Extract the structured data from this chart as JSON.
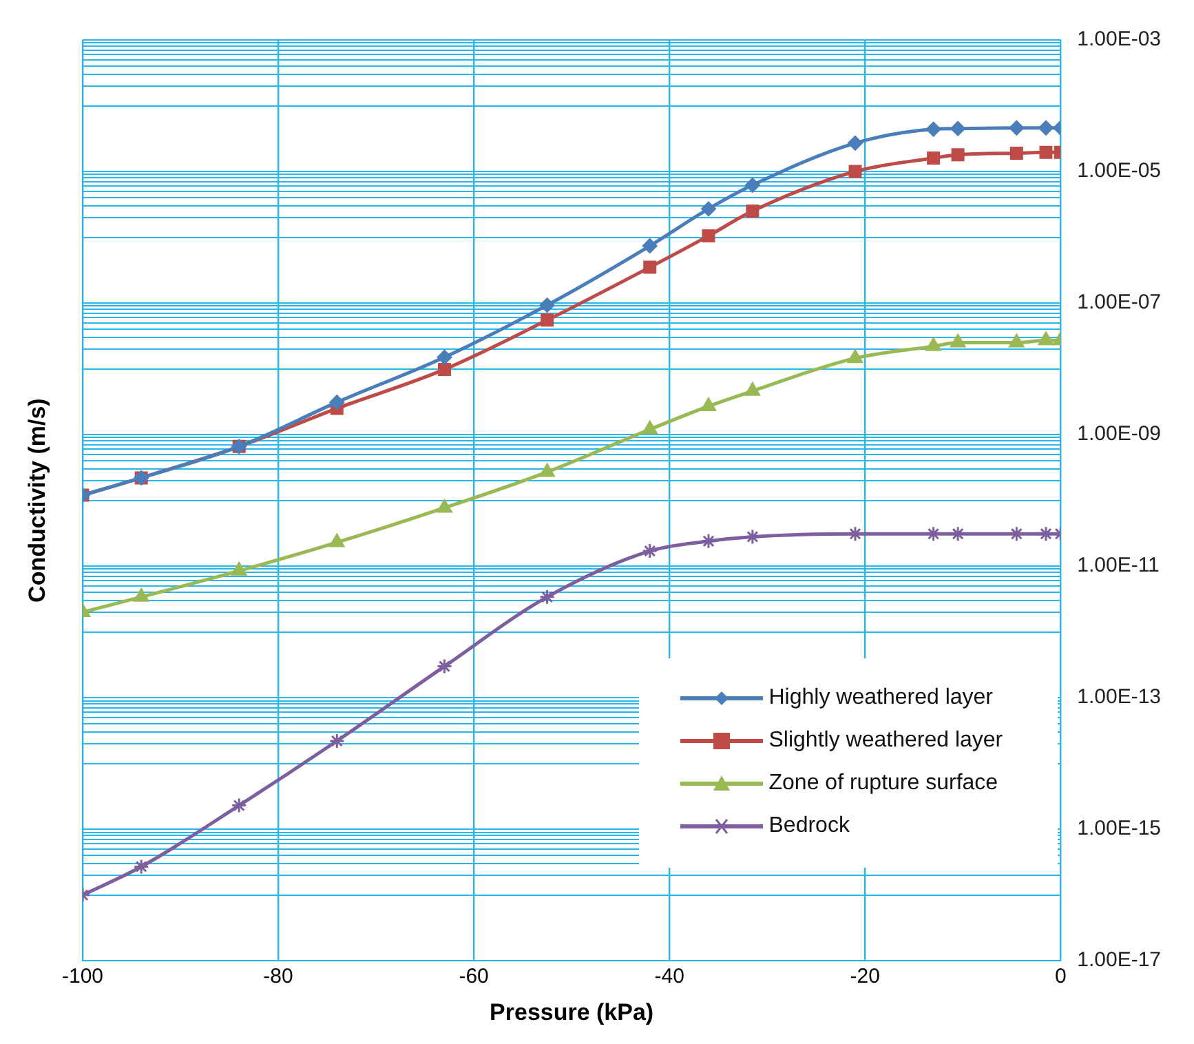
{
  "chart_data": {
    "type": "line",
    "xlabel": "Pressure (kPa)",
    "ylabel": "Conductivity (m/s)",
    "log": "y",
    "grid": true,
    "legend": "bottom right",
    "x": [
      -100,
      -94,
      -84,
      -74,
      -63,
      -52.5,
      -42,
      -36,
      -31.5,
      -21,
      -13,
      -10.5,
      -4.5,
      -1.5,
      0
    ],
    "xlim": [
      -100,
      0
    ],
    "xticks": [
      -100,
      -80,
      -60,
      -40,
      -20,
      0
    ],
    "ylim": [
      1e-17,
      0.001
    ],
    "yticks": [
      {
        "value": 1e-17,
        "label": "1.00E-17"
      },
      {
        "value": 1e-16,
        "label": null
      },
      {
        "value": 2e-16,
        "label": null
      },
      {
        "value": 3e-16,
        "label": null
      },
      {
        "value": 4e-16,
        "label": null
      },
      {
        "value": 5e-16,
        "label": null
      },
      {
        "value": 6e-16,
        "label": null
      },
      {
        "value": 7e-16,
        "label": null
      },
      {
        "value": 8e-16,
        "label": null
      },
      {
        "value": 9e-16,
        "label": null
      },
      {
        "value": 1e-15,
        "label": "1.00E-15"
      },
      {
        "value": 1e-14,
        "label": null
      },
      {
        "value": 2e-14,
        "label": null
      },
      {
        "value": 3e-14,
        "label": null
      },
      {
        "value": 4e-14,
        "label": null
      },
      {
        "value": 5e-14,
        "label": null
      },
      {
        "value": 6e-14,
        "label": null
      },
      {
        "value": 7e-14,
        "label": null
      },
      {
        "value": 8e-14,
        "label": null
      },
      {
        "value": 9e-14,
        "label": null
      },
      {
        "value": 1e-13,
        "label": "1.00E-13"
      },
      {
        "value": 1e-12,
        "label": null
      },
      {
        "value": 2e-12,
        "label": null
      },
      {
        "value": 3e-12,
        "label": null
      },
      {
        "value": 4e-12,
        "label": null
      },
      {
        "value": 5e-12,
        "label": null
      },
      {
        "value": 6e-12,
        "label": null
      },
      {
        "value": 7e-12,
        "label": null
      },
      {
        "value": 8e-12,
        "label": null
      },
      {
        "value": 9e-12,
        "label": null
      },
      {
        "value": 1e-11,
        "label": "1.00E-11"
      },
      {
        "value": 1e-10,
        "label": null
      },
      {
        "value": 2e-10,
        "label": null
      },
      {
        "value": 3e-10,
        "label": null
      },
      {
        "value": 4e-10,
        "label": null
      },
      {
        "value": 5e-10,
        "label": null
      },
      {
        "value": 6e-10,
        "label": null
      },
      {
        "value": 7e-10,
        "label": null
      },
      {
        "value": 8e-10,
        "label": null
      },
      {
        "value": 9e-10,
        "label": null
      },
      {
        "value": 1e-09,
        "label": "1.00E-09"
      },
      {
        "value": 1e-08,
        "label": null
      },
      {
        "value": 2e-08,
        "label": null
      },
      {
        "value": 3e-08,
        "label": null
      },
      {
        "value": 4e-08,
        "label": null
      },
      {
        "value": 5e-08,
        "label": null
      },
      {
        "value": 6e-08,
        "label": null
      },
      {
        "value": 7e-08,
        "label": null
      },
      {
        "value": 8e-08,
        "label": null
      },
      {
        "value": 9e-08,
        "label": null
      },
      {
        "value": 1e-07,
        "label": "1.00E-07"
      },
      {
        "value": 1e-06,
        "label": null
      },
      {
        "value": 2e-06,
        "label": null
      },
      {
        "value": 3e-06,
        "label": null
      },
      {
        "value": 4e-06,
        "label": null
      },
      {
        "value": 5e-06,
        "label": null
      },
      {
        "value": 6e-06,
        "label": null
      },
      {
        "value": 7e-06,
        "label": null
      },
      {
        "value": 8e-06,
        "label": null
      },
      {
        "value": 9e-06,
        "label": null
      },
      {
        "value": 1e-05,
        "label": "1.00E-05"
      },
      {
        "value": 0.0001,
        "label": null
      },
      {
        "value": 0.0002,
        "label": null
      },
      {
        "value": 0.0003,
        "label": null
      },
      {
        "value": 0.0004,
        "label": null
      },
      {
        "value": 0.0005,
        "label": null
      },
      {
        "value": 0.0006,
        "label": null
      },
      {
        "value": 0.0007,
        "label": null
      },
      {
        "value": 0.0008,
        "label": null
      },
      {
        "value": 0.0009,
        "label": null
      },
      {
        "value": 0.001,
        "label": "1.00E-03"
      }
    ],
    "series": [
      {
        "name": "Highly weathered layer",
        "color": "#4a7ebb",
        "marker": "diamond",
        "values": [
          1.2e-10,
          2.2e-10,
          6.6e-10,
          3.1e-09,
          1.5e-08,
          9.3e-08,
          7.4e-07,
          2.7e-06,
          6.2e-06,
          2.7e-05,
          4.4e-05,
          4.5e-05,
          4.6e-05,
          4.6e-05,
          4.6e-05
        ]
      },
      {
        "name": "Slightly weathered layer",
        "color": "#be4b48",
        "marker": "square",
        "values": [
          1.2e-10,
          2.2e-10,
          6.6e-10,
          2.5e-09,
          9.8e-09,
          5.5e-08,
          3.5e-07,
          1.05e-06,
          2.5e-06,
          1e-05,
          1.6e-05,
          1.8e-05,
          1.9e-05,
          1.95e-05,
          1.95e-05
        ]
      },
      {
        "name": "Zone of rupture surface",
        "color": "#98b954",
        "marker": "triangle",
        "values": [
          2e-12,
          3.4e-12,
          8.5e-12,
          2.3e-11,
          7.7e-11,
          2.7e-10,
          1.2e-09,
          2.7e-09,
          4.6e-09,
          1.45e-08,
          2.2e-08,
          2.5e-08,
          2.5e-08,
          2.7e-08,
          2.7e-08
        ]
      },
      {
        "name": "Bedrock",
        "color": "#7d5fa0",
        "marker": "cross",
        "values": [
          1e-16,
          2.7e-16,
          2.3e-15,
          2.2e-14,
          3e-13,
          3.4e-12,
          1.7e-11,
          2.4e-11,
          2.8e-11,
          3.1e-11,
          3.1e-11,
          3.1e-11,
          3.1e-11,
          3.1e-11,
          3.1e-11
        ]
      }
    ]
  }
}
